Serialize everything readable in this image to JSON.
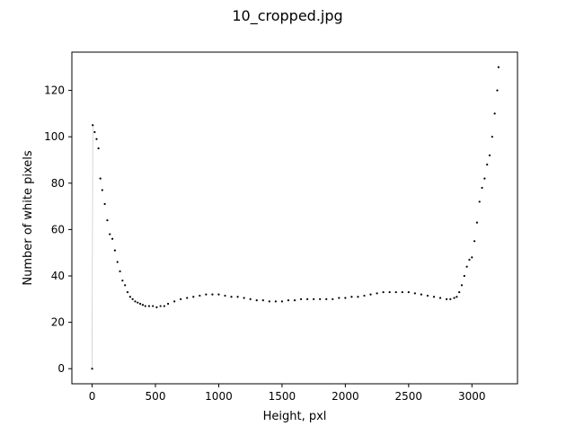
{
  "figure": {
    "title": "10_cropped.jpg"
  },
  "chart_data": {
    "type": "scatter",
    "title": "10_cropped.jpg",
    "xlabel": "Height, pxl",
    "ylabel": "Number of white pixels",
    "xlim": [
      -160,
      3360
    ],
    "ylim": [
      -6.5,
      136.5
    ],
    "xticks": [
      0,
      500,
      1000,
      1500,
      2000,
      2500,
      3000
    ],
    "yticks": [
      0,
      20,
      40,
      60,
      80,
      100,
      120
    ],
    "grid": false,
    "legend": "none",
    "marker_color": "#000000",
    "connector_color": "#bbbbbb",
    "series": [
      {
        "x": [
          0,
          5,
          20,
          35,
          50,
          65,
          80,
          100,
          120,
          140,
          160,
          180,
          200,
          220,
          240,
          260,
          280,
          300,
          320,
          340,
          360,
          380,
          400,
          420,
          450,
          480,
          510,
          540,
          570,
          600,
          650,
          700,
          750,
          800,
          850,
          900,
          950,
          1000,
          1050,
          1100,
          1150,
          1200,
          1250,
          1300,
          1350,
          1400,
          1450,
          1500,
          1550,
          1600,
          1650,
          1700,
          1750,
          1800,
          1850,
          1900,
          1950,
          2000,
          2050,
          2100,
          2150,
          2200,
          2250,
          2300,
          2350,
          2400,
          2450,
          2500,
          2550,
          2600,
          2650,
          2700,
          2750,
          2800,
          2830,
          2860,
          2880,
          2900,
          2920,
          2940,
          2960,
          2980,
          3000,
          3020,
          3040,
          3060,
          3080,
          3100,
          3120,
          3140,
          3160,
          3180,
          3200,
          3210
        ],
        "y": [
          0,
          105,
          102,
          99,
          95,
          82,
          77,
          71,
          64,
          58,
          56,
          51,
          46,
          42,
          38,
          36,
          33,
          31,
          30,
          29,
          28.5,
          28,
          27.5,
          27,
          27,
          27,
          26.5,
          27,
          27,
          28,
          29,
          30,
          30.5,
          31,
          31.5,
          32,
          32,
          32,
          31.5,
          31,
          31,
          30.5,
          30,
          29.5,
          29.5,
          29,
          29,
          29,
          29.5,
          29.5,
          30,
          30,
          30,
          30,
          30,
          30,
          30.5,
          30.5,
          31,
          31,
          31.5,
          32,
          32.5,
          33,
          33,
          33,
          33,
          33,
          32.5,
          32,
          31.5,
          31,
          30.5,
          30,
          30,
          30.5,
          31,
          33,
          36,
          40,
          44,
          47,
          48,
          55,
          63,
          72,
          78,
          82,
          88,
          92,
          100,
          110,
          120,
          130
        ]
      }
    ]
  }
}
